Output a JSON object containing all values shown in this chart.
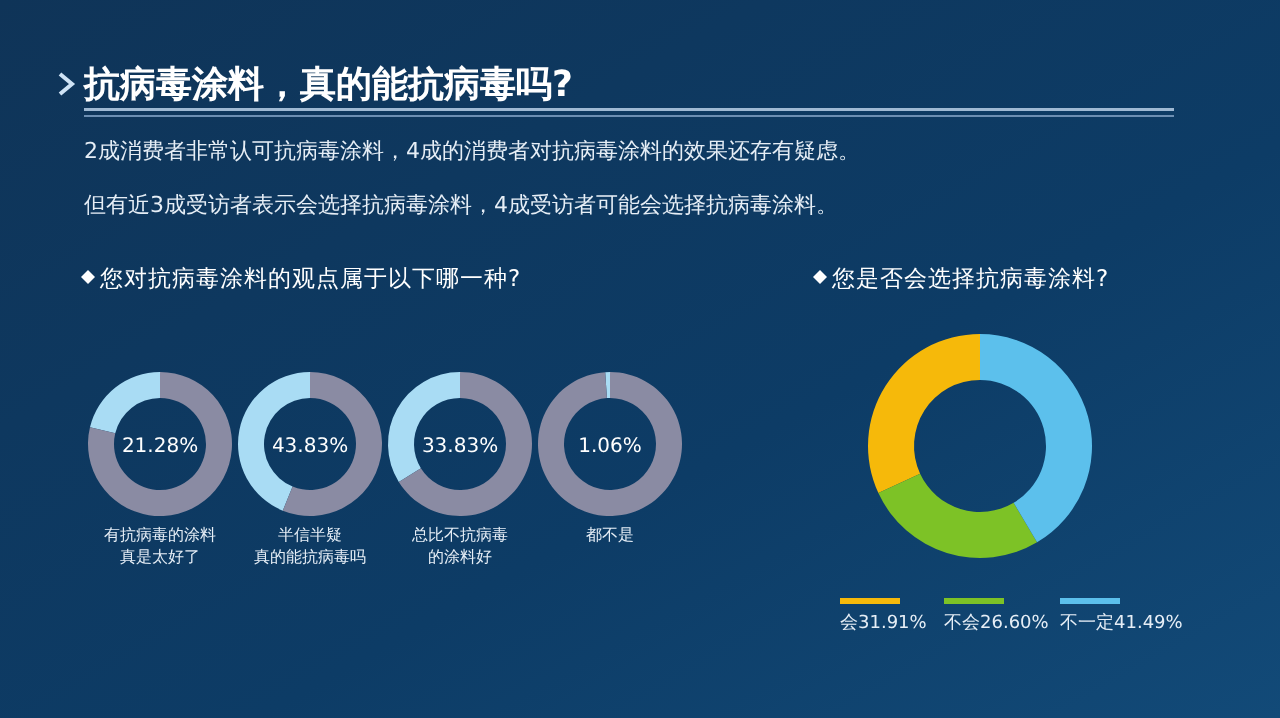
{
  "chart_data": [
    {
      "type": "other",
      "title": "抗病毒涂料，真的能抗病毒吗?",
      "annotations": [
        "2成消费者非常认可抗病毒涂料，4成的消费者对抗病毒涂料的效果还存有疑虑。",
        "但有近3成受访者表示会选择抗病毒涂料，4成受访者可能会选择抗病毒涂料。"
      ]
    },
    {
      "type": "donut",
      "title": "您对抗病毒涂料的观点属于以下哪一种?",
      "xlabel": "有抗病毒的涂料真是太好了",
      "categories": [
        null,
        null
      ],
      "values": [
        21.28,
        78.72
      ],
      "colors": [
        "#a9dcf4",
        "#8a8ba3"
      ],
      "annotations": [
        "21.28%"
      ]
    },
    {
      "type": "donut",
      "xlabel": "半信半疑真的能抗病毒吗",
      "categories": [
        null,
        null
      ],
      "values": [
        43.83,
        56.17
      ],
      "colors": [
        "#a9dcf4",
        "#8a8ba3"
      ],
      "annotations": [
        "43.83%"
      ]
    },
    {
      "type": "donut",
      "xlabel": "总比不抗病毒的涂料好",
      "categories": [
        null,
        null
      ],
      "values": [
        33.83,
        66.17
      ],
      "colors": [
        "#a9dcf4",
        "#8a8ba3"
      ],
      "annotations": [
        "33.83%"
      ]
    },
    {
      "type": "donut",
      "xlabel": "都不是",
      "categories": [
        null,
        null
      ],
      "values": [
        1.06,
        98.94
      ],
      "colors": [
        "#a9dcf4",
        "#8a8ba3"
      ],
      "annotations": [
        "1.06%"
      ]
    },
    {
      "type": "donut",
      "title": "您是否会选择抗病毒涂料?",
      "categories": [
        "会",
        "不会",
        "不一定"
      ],
      "values": [
        31.91,
        26.6,
        41.49
      ],
      "colors": [
        "#f6b90a",
        "#7dc226",
        "#5cc0ec"
      ],
      "value_labels": [
        "31.91%",
        "26.60%",
        "41.49%"
      ],
      "legend": "bottom"
    }
  ]
}
